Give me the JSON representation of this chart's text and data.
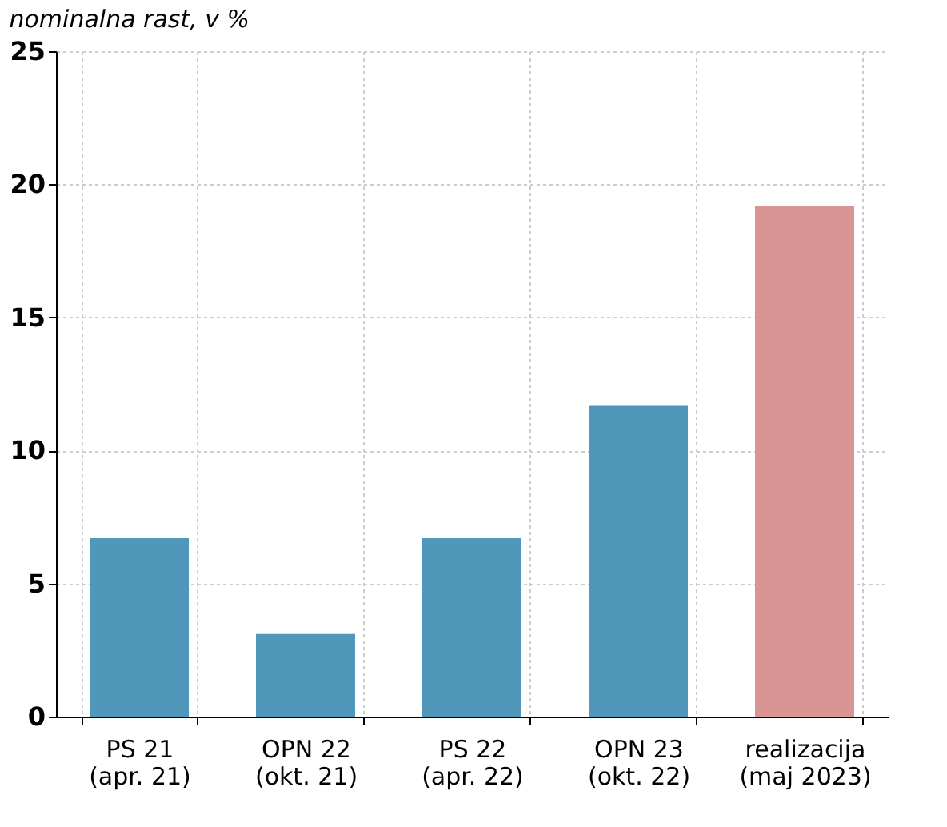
{
  "chart_data": {
    "type": "bar",
    "subtitle": "nominalna rast, v %",
    "categories": [
      "PS 21\n(apr. 21)",
      "OPN 22\n(okt. 21)",
      "PS 22\n(apr. 22)",
      "OPN 23\n(okt. 22)",
      "realizacija\n(maj 2023)"
    ],
    "values": [
      6.7,
      3.1,
      6.7,
      11.7,
      19.2
    ],
    "colors": [
      "#4f98b9",
      "#4f98b9",
      "#4f98b9",
      "#4f98b9",
      "#d99494"
    ],
    "ylim": [
      0,
      25
    ],
    "yticks": [
      0,
      5,
      10,
      15,
      20,
      25
    ],
    "grid": true,
    "legend": false
  }
}
